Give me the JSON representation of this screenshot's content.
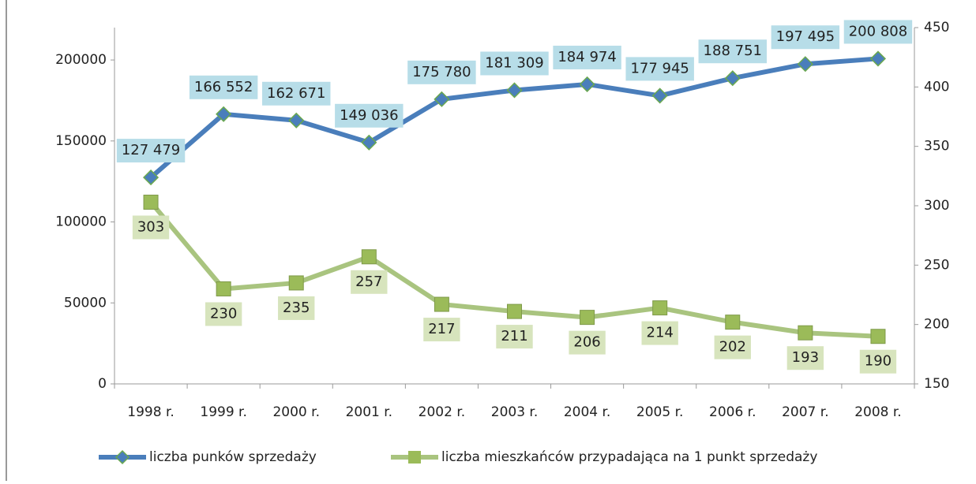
{
  "chart_data": {
    "type": "line",
    "categories": [
      "1998 r.",
      "1999 r.",
      "2000 r.",
      "2001 r.",
      "2002 r.",
      "2003 r.",
      "2004 r.",
      "2005 r.",
      "2006 r.",
      "2007 r.",
      "2008 r."
    ],
    "series": [
      {
        "name": "liczba punków sprzedaży",
        "color": "#4a7ebb",
        "marker_color": "#6aa84f",
        "values": [
          127479,
          166552,
          162671,
          149036,
          175780,
          181309,
          184974,
          177945,
          188751,
          197495,
          200808
        ],
        "value_labels": [
          "127 479",
          "166 552",
          "162 671",
          "149 036",
          "175 780",
          "181 309",
          "184 974",
          "177 945",
          "188 751",
          "197 495",
          "200 808"
        ],
        "label_color": "#b7dde8"
      },
      {
        "name": "liczba mieszkańców przypadająca na 1 punkt sprzedaży",
        "color": "#a9c47f",
        "marker_color": "#9bbb59",
        "axis": "y2",
        "values": [
          303,
          230,
          235,
          257,
          217,
          211,
          206,
          214,
          202,
          193,
          190
        ],
        "label_color": "#d7e4bd"
      }
    ],
    "ylim": [
      0,
      220000
    ],
    "yticks": [
      0,
      50000,
      100000,
      150000,
      200000
    ],
    "y2lim": [
      150,
      450
    ],
    "y2ticks": [
      150,
      200,
      250,
      300,
      350,
      400,
      450
    ],
    "grid": false,
    "legend": "bottom"
  }
}
